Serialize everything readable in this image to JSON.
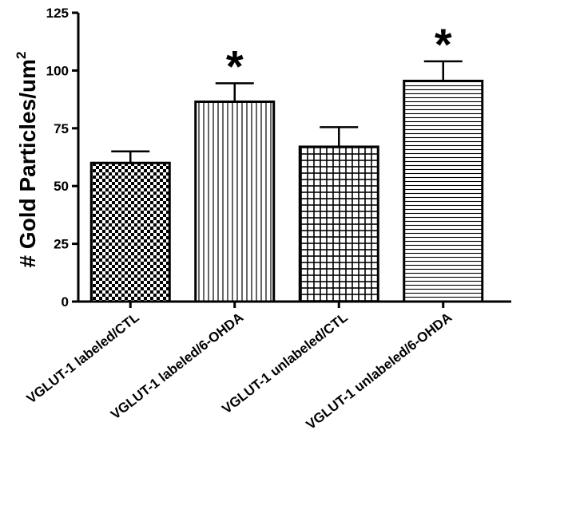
{
  "chart_data": {
    "type": "bar",
    "title": "",
    "xlabel": "",
    "ylabel": "# Gold Particles/um",
    "ylabel_superscript": "2",
    "ylim": [
      0,
      125
    ],
    "yticks": [
      0,
      25,
      50,
      75,
      100,
      125
    ],
    "ytick_labels": [
      "0",
      "25",
      "50",
      "75",
      "100",
      "125"
    ],
    "grid": false,
    "categories": [
      "VGLUT-1 labeled/CTL",
      "VGLUT-1 labeled/6-OHDA",
      "VGLUT-1 unlabeled/CTL",
      "VGLUT-1 unlabeled/6-OHDA"
    ],
    "values": [
      60,
      86.5,
      67,
      95.5
    ],
    "error": [
      5,
      8,
      8.5,
      8.5
    ],
    "bar_patterns": [
      "checker",
      "vertical-lines",
      "grid",
      "horizontal-lines"
    ],
    "significance": [
      "",
      "*",
      "",
      "*"
    ],
    "colors": {
      "bar_stroke": "#000000",
      "bar_fill": "#ffffff",
      "axis": "#000000"
    }
  }
}
